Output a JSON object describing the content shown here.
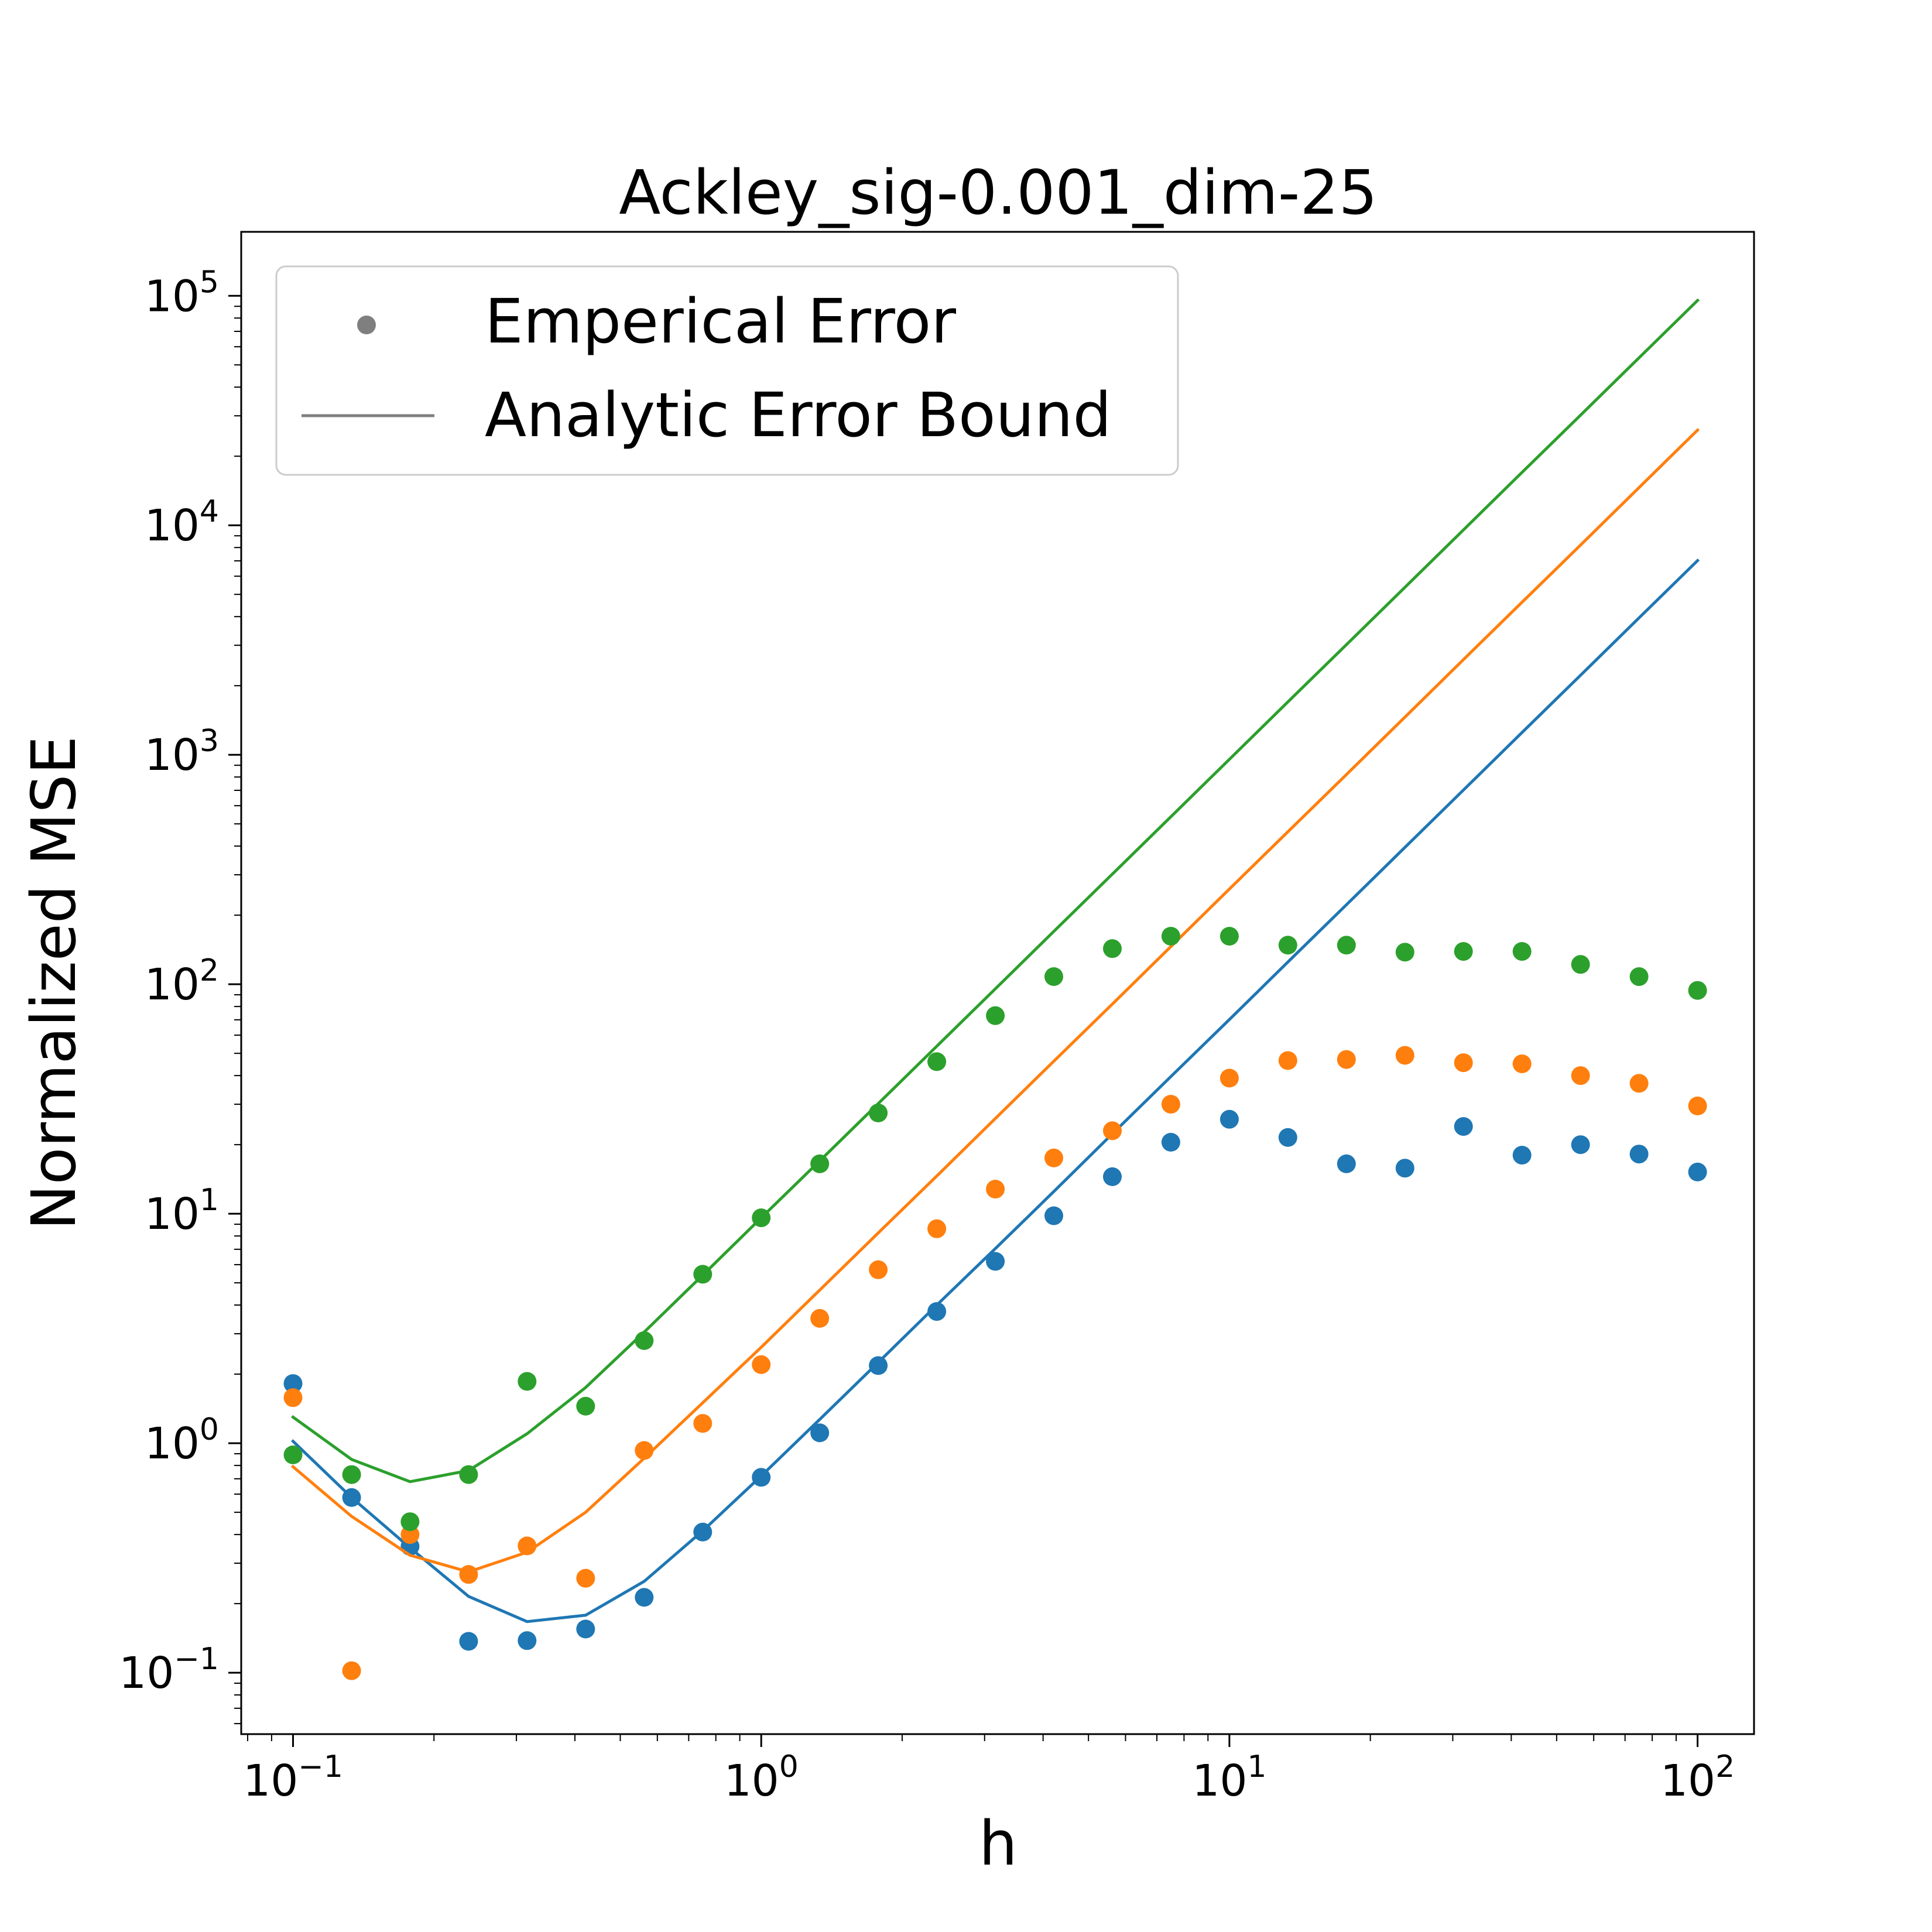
{
  "chart_data": {
    "type": "scatter",
    "title": "Ackley_sig-0.001_dim-25",
    "xlabel": "h",
    "ylabel": "Normalized MSE",
    "xscale": "log",
    "yscale": "log",
    "xlim": [
      0.0775,
      132
    ],
    "ylim": [
      0.054,
      190000
    ],
    "grid": false,
    "legend": {
      "placement": "upper-left",
      "entries": [
        {
          "label": "Emperical Error",
          "marker": "dot",
          "color": "#7f7f7f"
        },
        {
          "label": "Analytic Error Bound",
          "marker": "line",
          "color": "#7f7f7f"
        }
      ]
    },
    "x_ticks": [
      {
        "value": 0.1,
        "base": "10",
        "exp": "−1"
      },
      {
        "value": 1,
        "base": "10",
        "exp": "0"
      },
      {
        "value": 10,
        "base": "10",
        "exp": "1"
      },
      {
        "value": 100,
        "base": "10",
        "exp": "2"
      }
    ],
    "y_ticks": [
      {
        "value": 0.1,
        "base": "10",
        "exp": "−1"
      },
      {
        "value": 1,
        "base": "10",
        "exp": "0"
      },
      {
        "value": 10,
        "base": "10",
        "exp": "1"
      },
      {
        "value": 100,
        "base": "10",
        "exp": "2"
      },
      {
        "value": 1000,
        "base": "10",
        "exp": "3"
      },
      {
        "value": 10000,
        "base": "10",
        "exp": "4"
      },
      {
        "value": 100000,
        "base": "10",
        "exp": "5"
      }
    ],
    "x": [
      0.1,
      0.1334,
      0.1778,
      0.2371,
      0.3162,
      0.4217,
      0.5623,
      0.7499,
      1.0,
      1.3335,
      1.7783,
      2.3714,
      3.1623,
      4.217,
      5.6234,
      7.4989,
      10.0,
      13.335,
      17.783,
      23.714,
      31.623,
      42.17,
      56.234,
      74.989,
      100.0
    ],
    "series": [
      {
        "color": "#1f77b4",
        "empirical": [
          1.82,
          0.58,
          0.355,
          0.137,
          0.138,
          0.155,
          0.213,
          0.41,
          0.71,
          1.11,
          2.18,
          3.75,
          6.2,
          9.8,
          14.5,
          20.5,
          25.8,
          21.5,
          16.5,
          15.8,
          24.0,
          18.0,
          20.0,
          18.2,
          15.2
        ],
        "bound": [
          1.02,
          0.58,
          0.35,
          0.215,
          0.167,
          0.178,
          0.25,
          0.415,
          0.72,
          1.27,
          2.25,
          4.0,
          7.05,
          12.5,
          22.3,
          39.6,
          70.2,
          125,
          222,
          395,
          702,
          1250,
          2220,
          3950,
          7020
        ]
      },
      {
        "color": "#ff7f0e",
        "empirical": [
          1.58,
          0.102,
          0.4,
          0.268,
          0.357,
          0.258,
          0.93,
          1.22,
          2.2,
          3.5,
          5.7,
          8.6,
          12.8,
          17.5,
          23.0,
          30.0,
          39.0,
          46.5,
          47.0,
          49.0,
          45.5,
          45.0,
          40.0,
          37.0,
          29.5
        ],
        "bound": [
          0.79,
          0.48,
          0.325,
          0.275,
          0.335,
          0.5,
          0.86,
          1.5,
          2.62,
          4.65,
          8.25,
          14.6,
          26.0,
          46.2,
          82,
          146,
          260,
          462,
          820,
          1460,
          2600,
          4620,
          8200,
          14600,
          26000
        ]
      },
      {
        "color": "#2ca02c",
        "empirical": [
          0.89,
          0.73,
          0.455,
          0.73,
          1.86,
          1.45,
          2.8,
          5.45,
          9.6,
          16.5,
          27.5,
          46.0,
          73.0,
          108,
          143,
          162,
          162,
          148,
          148,
          138,
          139,
          139,
          122,
          108,
          94
        ],
        "bound": [
          1.3,
          0.85,
          0.68,
          0.76,
          1.1,
          1.75,
          3.05,
          5.4,
          9.6,
          17.0,
          30.2,
          53.7,
          95.5,
          170,
          302,
          537,
          955,
          1700,
          3020,
          5370,
          9550,
          17000,
          30200,
          53700,
          95500
        ]
      }
    ]
  }
}
